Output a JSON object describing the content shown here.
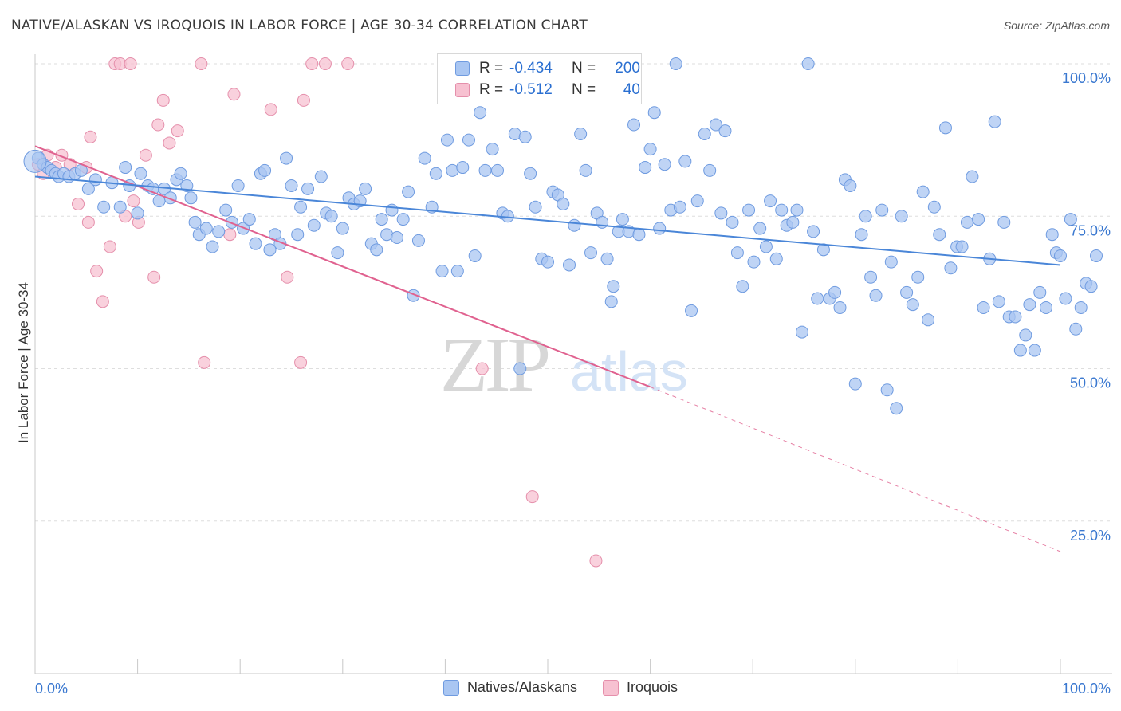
{
  "title": "NATIVE/ALASKAN VS IROQUOIS IN LABOR FORCE | AGE 30-34 CORRELATION CHART",
  "source": "Source: ZipAtlas.com",
  "watermark": {
    "zip": "ZIP",
    "atlas": "atlas"
  },
  "legend": {
    "rows": [
      {
        "r_label": "R =",
        "r_value": "-0.434",
        "n_label": "N =",
        "n_value": "200",
        "color": "#a9c6f2",
        "stroke": "#6f9be0"
      },
      {
        "r_label": "R =",
        "r_value": "-0.512",
        "n_label": "N =",
        "n_value": "40",
        "color": "#f7c1d1",
        "stroke": "#e58fab"
      }
    ]
  },
  "bottom_legend": [
    "Natives/Alaskans",
    "Iroquois"
  ],
  "chart_data": {
    "type": "scatter",
    "title": "NATIVE/ALASKAN VS IROQUOIS IN LABOR FORCE | AGE 30-34 CORRELATION CHART",
    "xlabel": "",
    "ylabel": "In Labor Force | Age 30-34",
    "xlim": [
      0,
      100
    ],
    "ylim": [
      0,
      105
    ],
    "x_tick_labels": [
      "0.0%",
      "100.0%"
    ],
    "y_tick_labels": [
      "25.0%",
      "50.0%",
      "75.0%",
      "100.0%"
    ],
    "y_ticks": [
      25,
      50,
      75,
      100
    ],
    "grid": "horizontal dashed",
    "colors": {
      "natives": "#4a86d8",
      "natives_fill": "#a9c6f2",
      "iroquois": "#e0618f",
      "iroquois_fill": "#f7c1d1",
      "tick_label": "#3a78d0"
    },
    "series": [
      {
        "name": "Natives/Alaskans",
        "trend": {
          "x": [
            0,
            100
          ],
          "y": [
            81.5,
            67.0
          ]
        },
        "points": [
          [
            0.3,
            84.5
          ],
          [
            0.8,
            83.5
          ],
          [
            1.2,
            83
          ],
          [
            1.6,
            82.5
          ],
          [
            2.0,
            82
          ],
          [
            2.3,
            81.5
          ],
          [
            2.8,
            82
          ],
          [
            3.3,
            81.5
          ],
          [
            3.9,
            82
          ],
          [
            4.5,
            82.5
          ],
          [
            5.2,
            79.5
          ],
          [
            5.9,
            81
          ],
          [
            6.7,
            76.5
          ],
          [
            7.5,
            80.5
          ],
          [
            8.3,
            76.5
          ],
          [
            8.8,
            83
          ],
          [
            9.2,
            80
          ],
          [
            10.0,
            75.5
          ],
          [
            10.3,
            82
          ],
          [
            11.0,
            80
          ],
          [
            11.5,
            79.5
          ],
          [
            12.1,
            77.5
          ],
          [
            12.6,
            79.5
          ],
          [
            13.2,
            78
          ],
          [
            13.8,
            81
          ],
          [
            14.2,
            82
          ],
          [
            14.8,
            80
          ],
          [
            15.2,
            78
          ],
          [
            15.6,
            74
          ],
          [
            16.0,
            72
          ],
          [
            16.7,
            73
          ],
          [
            17.3,
            70
          ],
          [
            17.9,
            72.5
          ],
          [
            18.6,
            76
          ],
          [
            19.2,
            74
          ],
          [
            19.8,
            80
          ],
          [
            20.3,
            73
          ],
          [
            20.9,
            74.5
          ],
          [
            21.5,
            70.5
          ],
          [
            22.0,
            82
          ],
          [
            22.4,
            82.5
          ],
          [
            22.9,
            69.5
          ],
          [
            23.4,
            72
          ],
          [
            23.9,
            70.5
          ],
          [
            24.5,
            84.5
          ],
          [
            25.0,
            80
          ],
          [
            25.6,
            72
          ],
          [
            25.9,
            76.5
          ],
          [
            26.6,
            79.5
          ],
          [
            27.2,
            73.5
          ],
          [
            27.9,
            81.5
          ],
          [
            28.4,
            75.5
          ],
          [
            28.9,
            75
          ],
          [
            29.5,
            69
          ],
          [
            30.0,
            73
          ],
          [
            30.6,
            78
          ],
          [
            31.1,
            77
          ],
          [
            31.7,
            77.5
          ],
          [
            32.2,
            79.5
          ],
          [
            32.8,
            70.5
          ],
          [
            33.3,
            69.5
          ],
          [
            33.8,
            74.5
          ],
          [
            34.3,
            72
          ],
          [
            34.8,
            76
          ],
          [
            35.3,
            71.5
          ],
          [
            35.9,
            74.5
          ],
          [
            36.4,
            79
          ],
          [
            36.9,
            62
          ],
          [
            37.4,
            71
          ],
          [
            38.0,
            84.5
          ],
          [
            38.7,
            76.5
          ],
          [
            39.1,
            82
          ],
          [
            39.7,
            66
          ],
          [
            40.2,
            87.5
          ],
          [
            40.7,
            82.5
          ],
          [
            41.2,
            66
          ],
          [
            41.7,
            83
          ],
          [
            42.3,
            87.5
          ],
          [
            42.9,
            68.5
          ],
          [
            43.4,
            92
          ],
          [
            43.9,
            82.5
          ],
          [
            44.6,
            86
          ],
          [
            45.1,
            82.5
          ],
          [
            45.6,
            75.5
          ],
          [
            46.1,
            75
          ],
          [
            46.8,
            88.5
          ],
          [
            47.3,
            50
          ],
          [
            47.8,
            88
          ],
          [
            48.3,
            82
          ],
          [
            48.8,
            76.5
          ],
          [
            49.4,
            68
          ],
          [
            50.0,
            67.5
          ],
          [
            50.5,
            79
          ],
          [
            51.0,
            78.5
          ],
          [
            51.5,
            77
          ],
          [
            52.1,
            67
          ],
          [
            52.6,
            73.5
          ],
          [
            53.2,
            88.5
          ],
          [
            53.7,
            82.5
          ],
          [
            54.2,
            69
          ],
          [
            54.8,
            75.5
          ],
          [
            55.3,
            74
          ],
          [
            55.8,
            68
          ],
          [
            56.2,
            61
          ],
          [
            56.4,
            63.5
          ],
          [
            56.9,
            72.5
          ],
          [
            57.3,
            74.5
          ],
          [
            57.9,
            72.5
          ],
          [
            58.4,
            90
          ],
          [
            58.9,
            72
          ],
          [
            59.5,
            83
          ],
          [
            60.0,
            86
          ],
          [
            60.4,
            92
          ],
          [
            60.9,
            73
          ],
          [
            61.4,
            83.5
          ],
          [
            62.0,
            76
          ],
          [
            62.5,
            100
          ],
          [
            62.9,
            76.5
          ],
          [
            63.4,
            84
          ],
          [
            64.0,
            59.5
          ],
          [
            64.6,
            77.5
          ],
          [
            65.3,
            88.5
          ],
          [
            65.8,
            82.5
          ],
          [
            66.4,
            90
          ],
          [
            66.9,
            75.5
          ],
          [
            67.3,
            89
          ],
          [
            68.0,
            74
          ],
          [
            68.5,
            69
          ],
          [
            69.0,
            63.5
          ],
          [
            69.6,
            76
          ],
          [
            70.1,
            67.5
          ],
          [
            70.7,
            73
          ],
          [
            71.3,
            70
          ],
          [
            71.7,
            77.5
          ],
          [
            72.3,
            68
          ],
          [
            72.8,
            76
          ],
          [
            73.3,
            73.5
          ],
          [
            73.9,
            74
          ],
          [
            74.3,
            76
          ],
          [
            74.8,
            56
          ],
          [
            75.4,
            100
          ],
          [
            75.9,
            72.5
          ],
          [
            76.3,
            61.5
          ],
          [
            76.9,
            69.5
          ],
          [
            77.5,
            61.5
          ],
          [
            78.0,
            62.5
          ],
          [
            78.5,
            60
          ],
          [
            79.0,
            81
          ],
          [
            79.5,
            80
          ],
          [
            80.0,
            47.5
          ],
          [
            80.6,
            72
          ],
          [
            81.0,
            75
          ],
          [
            81.5,
            65
          ],
          [
            82.0,
            62
          ],
          [
            82.6,
            76
          ],
          [
            83.1,
            46.5
          ],
          [
            83.5,
            67.5
          ],
          [
            84.0,
            43.5
          ],
          [
            84.5,
            75
          ],
          [
            85.0,
            62.5
          ],
          [
            85.6,
            60.5
          ],
          [
            86.1,
            65
          ],
          [
            86.6,
            79
          ],
          [
            87.1,
            58
          ],
          [
            87.7,
            76.5
          ],
          [
            88.2,
            72
          ],
          [
            88.8,
            89.5
          ],
          [
            89.3,
            66.5
          ],
          [
            89.9,
            70
          ],
          [
            90.4,
            70
          ],
          [
            90.9,
            74
          ],
          [
            91.4,
            81.5
          ],
          [
            92.0,
            74.5
          ],
          [
            92.5,
            60
          ],
          [
            93.1,
            68
          ],
          [
            93.6,
            90.5
          ],
          [
            94.0,
            61
          ],
          [
            94.5,
            74
          ],
          [
            95.0,
            58.5
          ],
          [
            95.6,
            58.5
          ],
          [
            96.1,
            53
          ],
          [
            96.6,
            55.5
          ],
          [
            97.0,
            60.5
          ],
          [
            97.5,
            53
          ],
          [
            98.0,
            62.5
          ],
          [
            98.6,
            60
          ],
          [
            99.2,
            72
          ],
          [
            99.6,
            69
          ],
          [
            100.0,
            68.5
          ],
          [
            100.5,
            61.5
          ],
          [
            101.0,
            74.5
          ],
          [
            101.5,
            56.5
          ],
          [
            102.0,
            60
          ],
          [
            102.5,
            64
          ],
          [
            103.0,
            63.5
          ],
          [
            103.5,
            68.5
          ]
        ]
      },
      {
        "name": "Iroquois",
        "trend": {
          "x": [
            0,
            60
          ],
          "y": [
            86.5,
            47.0
          ]
        },
        "trend_dashed": {
          "x": [
            60,
            100
          ],
          "y": [
            47.0,
            20.0
          ]
        },
        "points": [
          [
            0.3,
            83.5
          ],
          [
            0.8,
            82
          ],
          [
            1.2,
            85
          ],
          [
            2.0,
            83
          ],
          [
            2.6,
            85
          ],
          [
            3.4,
            83.5
          ],
          [
            4.2,
            77
          ],
          [
            5.0,
            83
          ],
          [
            5.2,
            74
          ],
          [
            5.4,
            88
          ],
          [
            6.0,
            66
          ],
          [
            6.6,
            61
          ],
          [
            7.3,
            70
          ],
          [
            7.8,
            100
          ],
          [
            8.3,
            100
          ],
          [
            8.8,
            75
          ],
          [
            9.3,
            100
          ],
          [
            9.6,
            77.5
          ],
          [
            10.1,
            74
          ],
          [
            10.8,
            85
          ],
          [
            11.6,
            65
          ],
          [
            12.0,
            90
          ],
          [
            12.5,
            94
          ],
          [
            13.1,
            87
          ],
          [
            13.9,
            89
          ],
          [
            16.2,
            100
          ],
          [
            16.5,
            51
          ],
          [
            19.0,
            72
          ],
          [
            19.4,
            95
          ],
          [
            23.0,
            92.5
          ],
          [
            24.6,
            65
          ],
          [
            25.9,
            51
          ],
          [
            26.2,
            94
          ],
          [
            27.0,
            100
          ],
          [
            28.3,
            100
          ],
          [
            30.5,
            100
          ],
          [
            43.6,
            50
          ],
          [
            48.5,
            29
          ],
          [
            54.7,
            18.5
          ],
          [
            55.0,
            100
          ]
        ]
      }
    ]
  }
}
